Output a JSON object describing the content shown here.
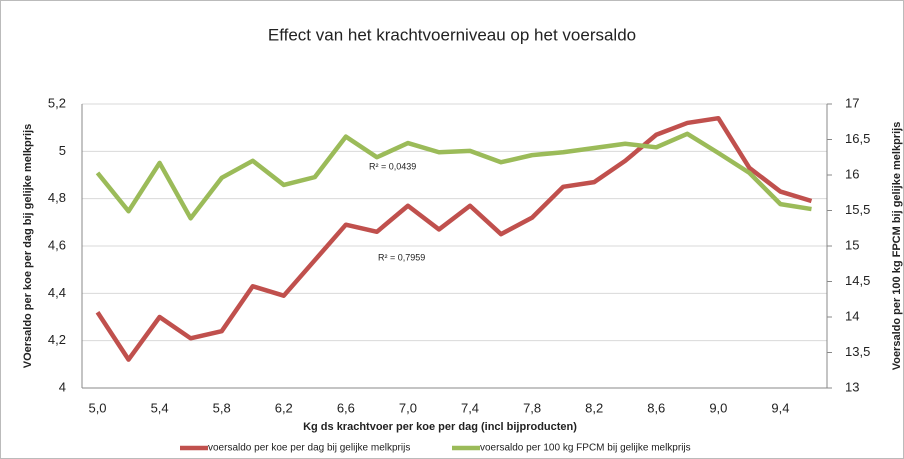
{
  "chart_data": {
    "type": "line",
    "title": "Effect van het krachtvoerniveau op het voersaldo",
    "x_label": "Kg  ds krachtvoer per koe per dag  (incl bijproducten)",
    "y_label": "VOersaldo per koe per dag bij gelijke melkprijs",
    "y2_label": "Voersaldo per 100 kg FPCM bij gelijke melkprijs",
    "annotations": [
      "R² = 0,0439",
      "R² = 0,7959"
    ],
    "categories": [
      "5,0",
      null,
      "5,4",
      null,
      "5,8",
      null,
      "6,2",
      null,
      "6,6",
      null,
      "7,0",
      null,
      "7,4",
      null,
      "7,8",
      null,
      "8,2",
      null,
      "8,6",
      null,
      "9,0",
      null,
      "9,4",
      null
    ],
    "series": [
      {
        "name": "voersaldo per koe per dag bij gelijke melkprijs",
        "color": "#c0504d",
        "values": [
          4.32,
          4.12,
          4.3,
          4.21,
          4.24,
          4.43,
          4.39,
          4.54,
          4.69,
          4.66,
          4.77,
          4.67,
          4.77,
          4.65,
          4.72,
          4.85,
          4.87,
          4.96,
          5.07,
          5.12,
          5.14,
          4.93,
          4.83,
          4.79
        ]
      },
      {
        "name": "voersaldo per 100 kg FPCM bij gelijke melkprijs",
        "color": "#9bbb59",
        "axis": "y2",
        "values": [
          16.03,
          15.49,
          16.17,
          15.39,
          15.96,
          16.2,
          15.86,
          15.97,
          16.54,
          16.25,
          16.45,
          16.32,
          16.34,
          16.18,
          16.28,
          16.32,
          16.38,
          16.44,
          16.39,
          16.58,
          16.31,
          16.03,
          15.59,
          15.52
        ]
      }
    ],
    "ylim": [
      4,
      5.2
    ],
    "yticks": [
      4,
      {
        "value": 4.2,
        "label": "4,2"
      },
      {
        "value": 4.4,
        "label": "4,4"
      },
      {
        "value": 4.6,
        "label": "4,6"
      },
      {
        "value": 4.8,
        "label": "4,8"
      },
      5,
      {
        "value": 5.2,
        "label": "5,2"
      }
    ],
    "y2lim": [
      13,
      17
    ],
    "y2ticks": [
      13,
      {
        "value": 13.5,
        "label": "13,5"
      },
      14,
      {
        "value": 14.5,
        "label": "14,5"
      },
      15,
      {
        "value": 15.5,
        "label": "15,5"
      },
      16,
      {
        "value": 16.5,
        "label": "16,5"
      },
      17
    ],
    "grid": true,
    "legend": "bottom"
  }
}
